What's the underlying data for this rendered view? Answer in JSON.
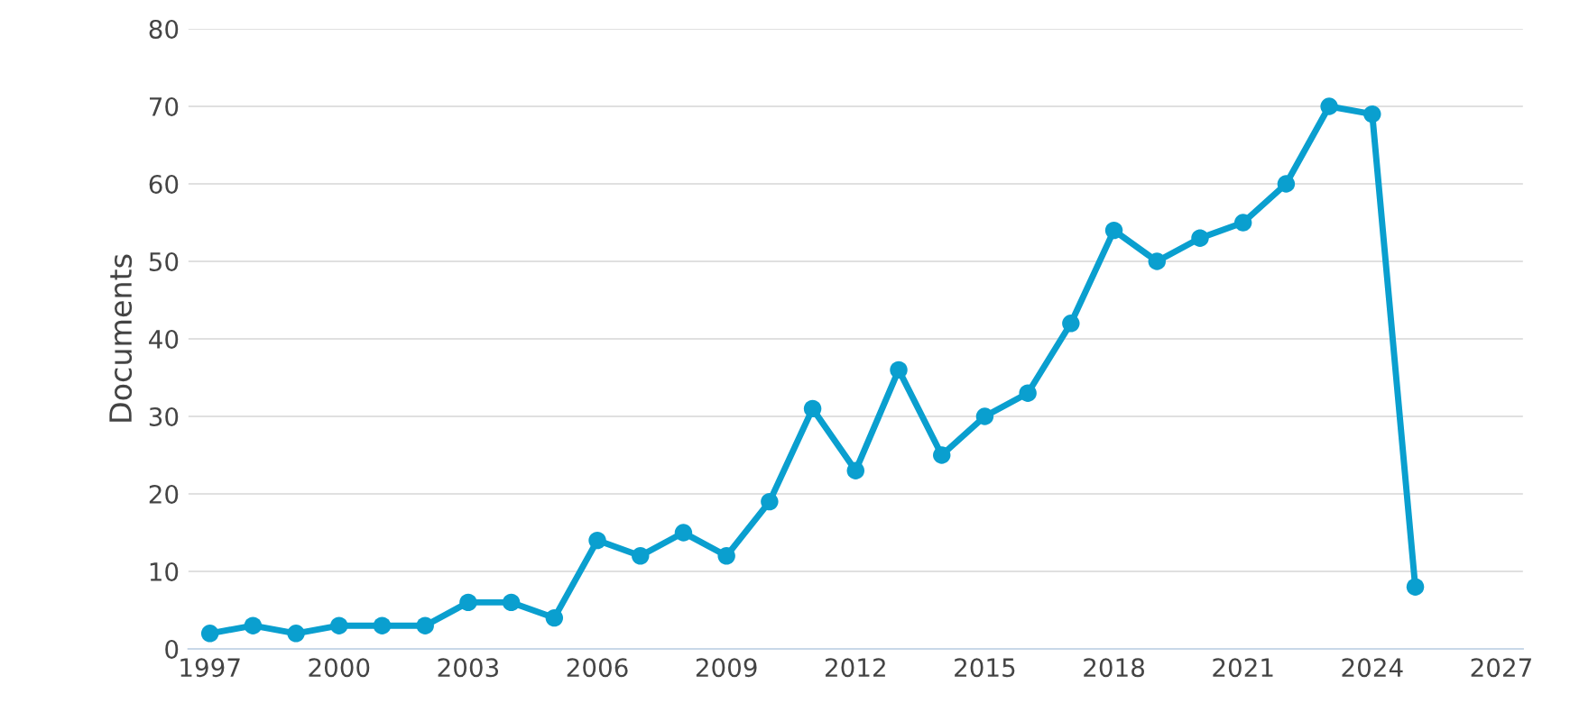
{
  "chart_data": {
    "type": "line",
    "ylabel": "Documents",
    "x": [
      1997,
      1998,
      1999,
      2000,
      2001,
      2002,
      2003,
      2004,
      2005,
      2006,
      2007,
      2008,
      2009,
      2010,
      2011,
      2012,
      2013,
      2014,
      2015,
      2016,
      2017,
      2018,
      2019,
      2020,
      2021,
      2022,
      2023,
      2024,
      2025
    ],
    "series": [
      {
        "color": "#0a9fcf",
        "values": [
          2,
          3,
          2,
          3,
          3,
          3,
          6,
          6,
          4,
          14,
          12,
          15,
          12,
          19,
          31,
          23,
          36,
          25,
          30,
          33,
          42,
          54,
          50,
          53,
          55,
          60,
          70,
          69,
          8
        ]
      }
    ],
    "xlim": [
      1996.5,
      2027.5
    ],
    "xticks": [
      1997,
      2000,
      2003,
      2006,
      2009,
      2012,
      2015,
      2018,
      2021,
      2024,
      2027
    ],
    "ylim": [
      0,
      80
    ],
    "yticks": [
      0,
      10,
      20,
      30,
      40,
      50,
      60,
      70,
      80
    ],
    "grid": "y",
    "marker": "circle",
    "line_style": "solid"
  }
}
